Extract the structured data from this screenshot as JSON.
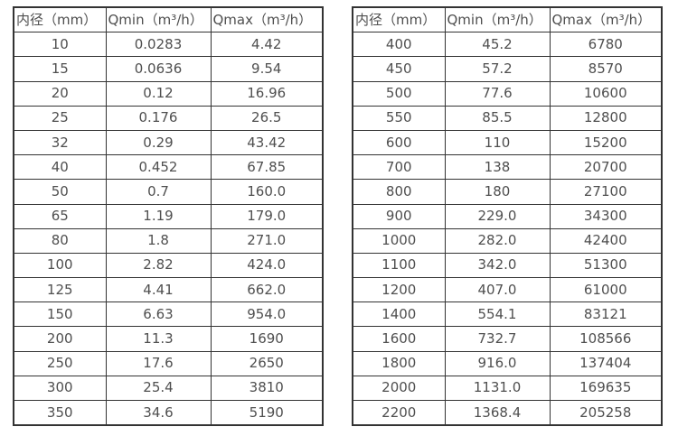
{
  "page": {
    "background": "#ffffff",
    "border_color": "#333333",
    "text_color": "#4f4f4f"
  },
  "tables": [
    {
      "id": "diameter-flow-table-small",
      "headers": [
        "内径（mm）",
        "Qmin（m³/h）",
        "Qmax（m³/h）"
      ],
      "rows": [
        [
          "10",
          "0.0283",
          "4.42"
        ],
        [
          "15",
          "0.0636",
          "9.54"
        ],
        [
          "20",
          "0.12",
          "16.96"
        ],
        [
          "25",
          "0.176",
          "26.5"
        ],
        [
          "32",
          "0.29",
          "43.42"
        ],
        [
          "40",
          "0.452",
          "67.85"
        ],
        [
          "50",
          "0.7",
          "160.0"
        ],
        [
          "65",
          "1.19",
          "179.0"
        ],
        [
          "80",
          "1.8",
          "271.0"
        ],
        [
          "100",
          "2.82",
          "424.0"
        ],
        [
          "125",
          "4.41",
          "662.0"
        ],
        [
          "150",
          "6.63",
          "954.0"
        ],
        [
          "200",
          "11.3",
          "1690"
        ],
        [
          "250",
          "17.6",
          "2650"
        ],
        [
          "300",
          "25.4",
          "3810"
        ],
        [
          "350",
          "34.6",
          "5190"
        ]
      ]
    },
    {
      "id": "diameter-flow-table-large",
      "headers": [
        "内径（mm）",
        "Qmin（m³/h）",
        "Qmax（m³/h）"
      ],
      "rows": [
        [
          "400",
          "45.2",
          "6780"
        ],
        [
          "450",
          "57.2",
          "8570"
        ],
        [
          "500",
          "77.6",
          "10600"
        ],
        [
          "550",
          "85.5",
          "12800"
        ],
        [
          "600",
          "110",
          "15200"
        ],
        [
          "700",
          "138",
          "20700"
        ],
        [
          "800",
          "180",
          "27100"
        ],
        [
          "900",
          "229.0",
          "34300"
        ],
        [
          "1000",
          "282.0",
          "42400"
        ],
        [
          "1100",
          "342.0",
          "51300"
        ],
        [
          "1200",
          "407.0",
          "61000"
        ],
        [
          "1400",
          "554.1",
          "83121"
        ],
        [
          "1600",
          "732.7",
          "108566"
        ],
        [
          "1800",
          "916.0",
          "137404"
        ],
        [
          "2000",
          "1131.0",
          "169635"
        ],
        [
          "2200",
          "1368.4",
          "205258"
        ]
      ]
    }
  ]
}
